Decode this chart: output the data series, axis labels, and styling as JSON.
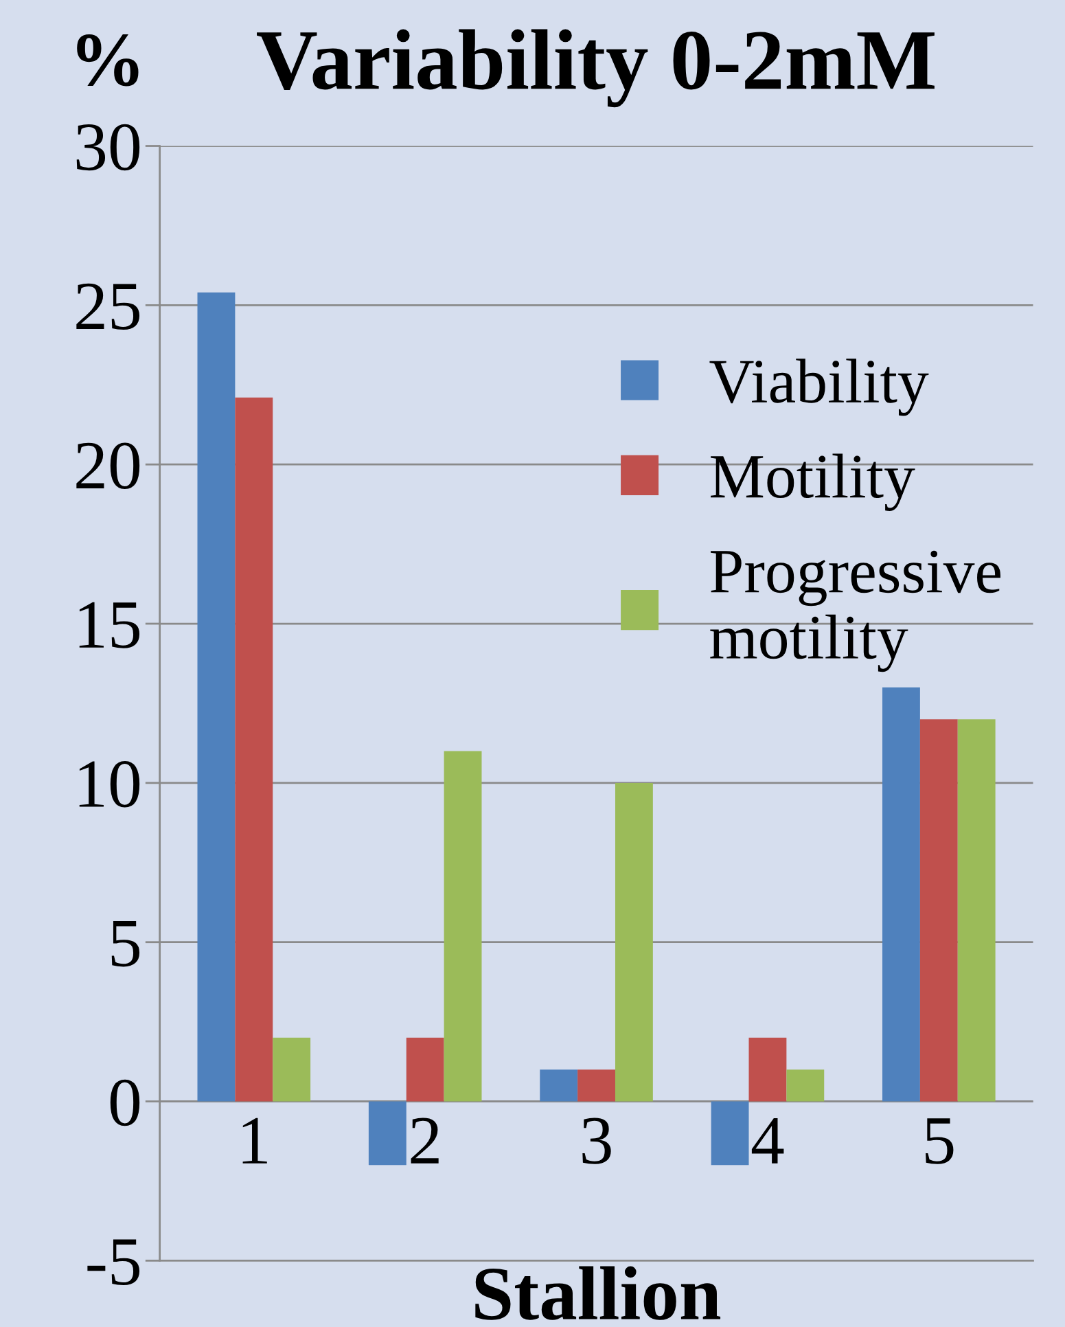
{
  "chart_data": {
    "type": "bar",
    "title": "Variability 0-2mM",
    "ylabel": "%",
    "xlabel": "Stallion",
    "categories": [
      "1",
      "2",
      "3",
      "4",
      "5"
    ],
    "series": [
      {
        "name": "Viability",
        "color": "#4f81bd",
        "values": [
          25.4,
          -2,
          1,
          -2,
          13
        ]
      },
      {
        "name": "Motility",
        "color": "#c0504d",
        "values": [
          22.1,
          2,
          1,
          2,
          12
        ]
      },
      {
        "name": "Progressive\nmotility",
        "color": "#9bbb59",
        "values": [
          2,
          11,
          10,
          1,
          12
        ]
      }
    ],
    "ylim": [
      -5,
      30
    ],
    "yticks": [
      -5,
      0,
      5,
      10,
      15,
      20,
      25,
      30
    ],
    "grid": "y",
    "legend": "top right"
  }
}
